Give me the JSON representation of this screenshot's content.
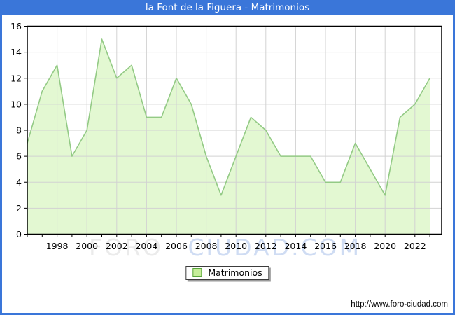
{
  "title": "la Font de la Figuera - Matrimonios",
  "legend": {
    "label": "Matrimonios"
  },
  "footer": {
    "url": "http://www.foro-ciudad.com"
  },
  "watermark": {
    "part1": "FORO",
    "part2": "CIUDAD.COM"
  },
  "colors": {
    "titlebar_blue": "#3a76d9",
    "frame_blue": "#3a76d9",
    "area_fill": "#e3f8d2",
    "line_green": "#93ca85",
    "legend_swatch": "#c6ee9a",
    "legend_swatch_border": "#5aa63c",
    "grid": "#d2d2d2",
    "axis": "#000000",
    "watermark_gray": "#ebebeb",
    "watermark_blue": "#cfdcf3"
  },
  "chart_data": {
    "type": "area",
    "title": "la Font de la Figuera - Matrimonios",
    "x": [
      1996,
      1997,
      1998,
      1999,
      2000,
      2001,
      2002,
      2003,
      2004,
      2005,
      2006,
      2007,
      2008,
      2009,
      2010,
      2011,
      2012,
      2013,
      2014,
      2015,
      2016,
      2017,
      2018,
      2019,
      2020,
      2021,
      2022,
      2023
    ],
    "series": [
      {
        "name": "Matrimonios",
        "values": [
          7,
          11,
          13,
          6,
          8,
          15,
          12,
          13,
          9,
          9,
          12,
          10,
          6,
          3,
          6,
          9,
          8,
          6,
          6,
          6,
          4,
          4,
          7,
          5,
          3,
          9,
          10,
          12
        ]
      }
    ],
    "xlabel": "",
    "ylabel": "",
    "ylim": [
      0,
      16
    ],
    "yticks": [
      0,
      2,
      4,
      6,
      8,
      10,
      12,
      14,
      16
    ],
    "xticks": [
      1998,
      2000,
      2002,
      2004,
      2006,
      2008,
      2010,
      2012,
      2014,
      2016,
      2018,
      2020,
      2022
    ],
    "grid": true,
    "legend_position": "bottom"
  }
}
